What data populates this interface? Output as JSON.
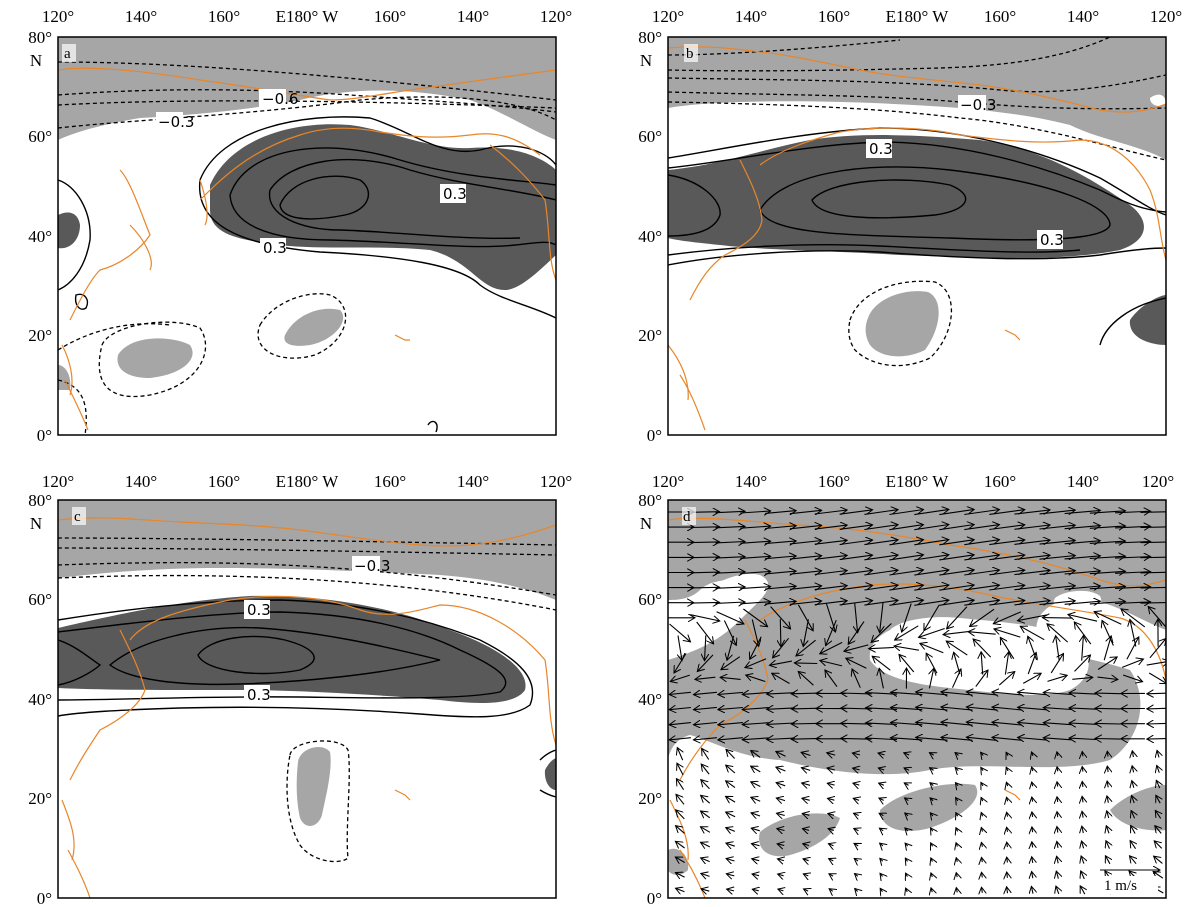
{
  "figure": {
    "x_ticks": [
      "120°",
      "140°",
      "160°",
      "E180° W",
      "160°",
      "140°",
      "120°"
    ],
    "y_ticks": [
      "80°",
      "60°",
      "40°",
      "20°",
      "0°"
    ],
    "north_label": "N",
    "colors": {
      "coast": "#e8862a",
      "shade_positive": "#595959",
      "shade_negative": "#a6a6a6",
      "frame": "#000000"
    }
  },
  "panels": [
    {
      "id": "a",
      "label": "a",
      "contour_labels": [
        "−0.6",
        "−0.3",
        "0.3",
        "0.3"
      ]
    },
    {
      "id": "b",
      "label": "b",
      "contour_labels": [
        "−0.3",
        "0.3",
        "0.3"
      ]
    },
    {
      "id": "c",
      "label": "c",
      "contour_labels": [
        "−0.3",
        "0.3",
        "0.3"
      ]
    },
    {
      "id": "d",
      "label": "d",
      "vector_scale_label": "1 m/s"
    }
  ]
}
